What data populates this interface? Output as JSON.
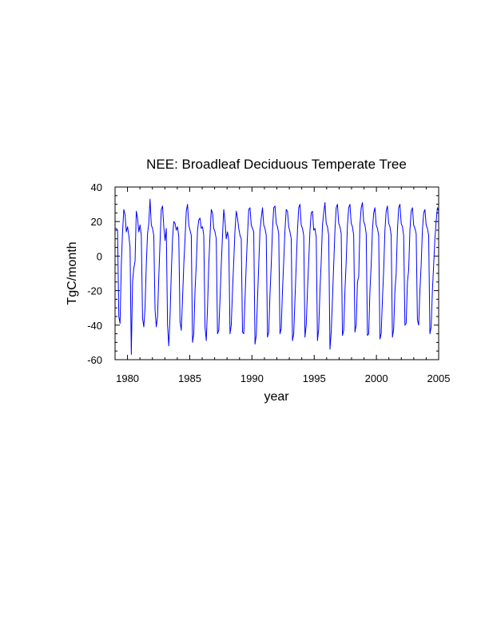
{
  "chart_data": {
    "type": "line",
    "title": "NEE: Broadleaf Deciduous Temperate Tree",
    "xlabel": "year",
    "ylabel": "TgC/month",
    "xlim": [
      1979,
      2005
    ],
    "ylim": [
      -60,
      40
    ],
    "x_ticks": [
      1980,
      1985,
      1990,
      1995,
      2000,
      2005
    ],
    "y_ticks": [
      -60,
      -40,
      -20,
      0,
      20,
      40
    ],
    "x_tick_labels": [
      "1980",
      "1985",
      "1990",
      "1995",
      "2000",
      "2005"
    ],
    "y_tick_labels": [
      "-60",
      "-40",
      "-20",
      "0",
      "20",
      "40"
    ],
    "grid": false,
    "legend": "none",
    "line_color": "#0000ff",
    "series": [
      {
        "x_start": 1979.0,
        "x_step": 0.08333,
        "values": [
          16,
          16,
          15,
          -35,
          -39,
          -5,
          14,
          27,
          24,
          14,
          17,
          12,
          5,
          -57,
          -15,
          -7,
          -3,
          26,
          22,
          14,
          18,
          12,
          -36,
          -41,
          -30,
          -5,
          13,
          19,
          33,
          18,
          16,
          12,
          -31,
          -41,
          -35,
          -12,
          8,
          27,
          29,
          17,
          9,
          16,
          -40,
          -52,
          -35,
          -10,
          10,
          20,
          19,
          15,
          17,
          11,
          -38,
          -43,
          -25,
          -5,
          10,
          26,
          30,
          18,
          15,
          12,
          -50,
          -45,
          -20,
          -5,
          15,
          21,
          22,
          16,
          17,
          12,
          -41,
          -49,
          -30,
          -5,
          12,
          27,
          25,
          16,
          14,
          10,
          -45,
          -43,
          -25,
          -5,
          12,
          27,
          20,
          10,
          14,
          9,
          -45,
          -40,
          -20,
          -3,
          15,
          26,
          22,
          16,
          12,
          10,
          -44,
          -45,
          -25,
          -5,
          12,
          27,
          28,
          18,
          16,
          14,
          -51,
          -46,
          -25,
          -5,
          15,
          22,
          28,
          18,
          16,
          12,
          -47,
          -44,
          -22,
          -5,
          15,
          28,
          29,
          19,
          17,
          13,
          -45,
          -42,
          -20,
          -3,
          15,
          27,
          26,
          17,
          14,
          10,
          -49,
          -45,
          -25,
          -5,
          15,
          28,
          30,
          18,
          16,
          12,
          -47,
          -40,
          -20,
          -3,
          15,
          25,
          26,
          15,
          16,
          11,
          -49,
          -42,
          -20,
          -3,
          18,
          25,
          31,
          19,
          17,
          12,
          -54,
          -44,
          -25,
          -5,
          15,
          28,
          30,
          19,
          17,
          13,
          -46,
          -43,
          -20,
          -3,
          18,
          28,
          30,
          19,
          17,
          12,
          -44,
          -40,
          -15,
          -12,
          18,
          28,
          31,
          20,
          18,
          13,
          -46,
          -45,
          -20,
          -5,
          15,
          25,
          28,
          18,
          16,
          12,
          -48,
          -45,
          -25,
          -8,
          15,
          26,
          29,
          19,
          17,
          12,
          -47,
          -42,
          -20,
          -10,
          15,
          28,
          30,
          19,
          17,
          12,
          -40,
          -39,
          -15,
          -8,
          15,
          26,
          28,
          18,
          16,
          13,
          -37,
          -40,
          -20,
          -5,
          15,
          25,
          27,
          18,
          16,
          12,
          -45,
          -41,
          -20,
          -5,
          10,
          20,
          28,
          26
        ]
      }
    ]
  }
}
